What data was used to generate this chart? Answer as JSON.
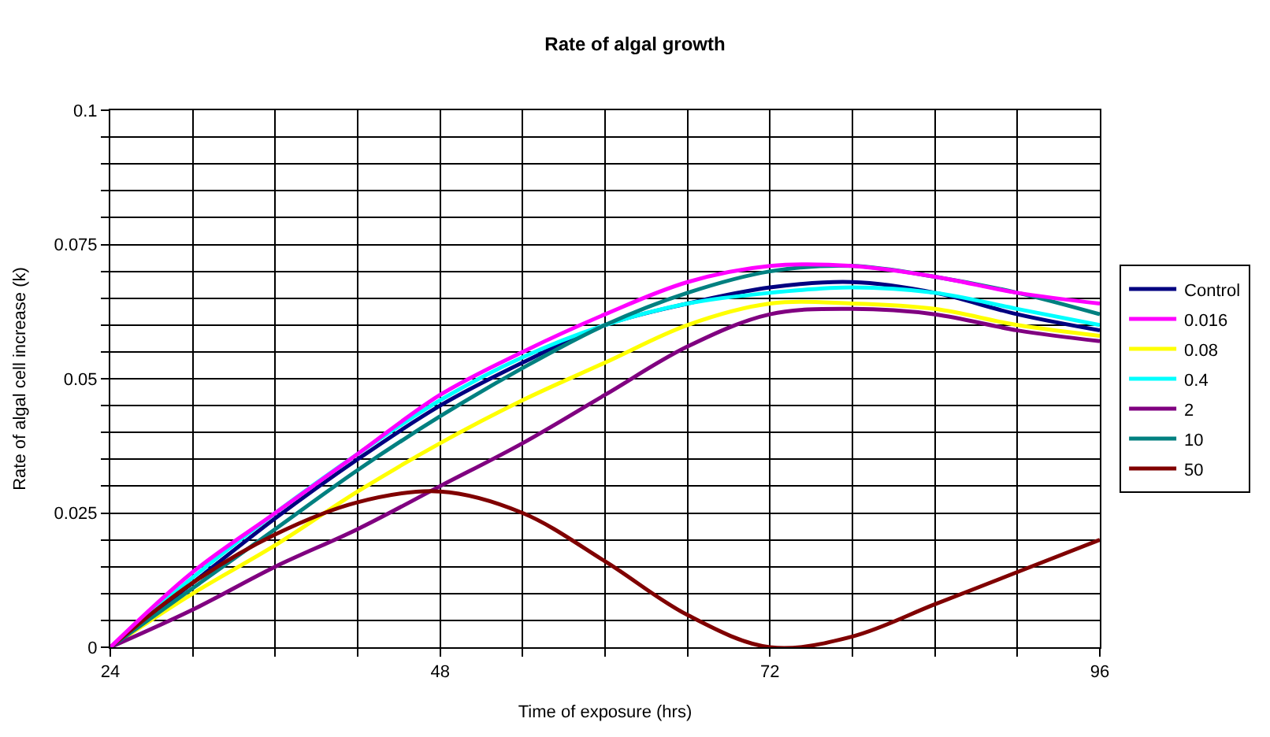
{
  "chart_data": {
    "type": "line",
    "title": "Rate of algal growth",
    "xlabel": "Time of exposure (hrs)",
    "ylabel": "Rate of algal cell increase (k)",
    "x": [
      24,
      30,
      36,
      42,
      48,
      54,
      60,
      66,
      72,
      78,
      84,
      90,
      96
    ],
    "series": [
      {
        "name": "Control",
        "color": "#000080",
        "values": [
          0,
          0.012,
          0.024,
          0.035,
          0.045,
          0.053,
          0.06,
          0.064,
          0.067,
          0.068,
          0.066,
          0.062,
          0.059
        ]
      },
      {
        "name": "0.016",
        "color": "#ff00ff",
        "values": [
          0,
          0.014,
          0.025,
          0.036,
          0.047,
          0.055,
          0.062,
          0.068,
          0.071,
          0.071,
          0.069,
          0.066,
          0.064
        ]
      },
      {
        "name": "0.08",
        "color": "#ffff00",
        "values": [
          0,
          0.01,
          0.019,
          0.029,
          0.038,
          0.046,
          0.053,
          0.06,
          0.064,
          0.064,
          0.063,
          0.06,
          0.058
        ]
      },
      {
        "name": "0.4",
        "color": "#00ffff",
        "values": [
          0,
          0.013,
          0.025,
          0.036,
          0.046,
          0.054,
          0.06,
          0.064,
          0.066,
          0.067,
          0.066,
          0.063,
          0.06
        ]
      },
      {
        "name": "2",
        "color": "#800080",
        "values": [
          0,
          0.007,
          0.015,
          0.022,
          0.03,
          0.038,
          0.047,
          0.056,
          0.062,
          0.063,
          0.062,
          0.059,
          0.057
        ]
      },
      {
        "name": "10",
        "color": "#008080",
        "values": [
          0,
          0.011,
          0.022,
          0.033,
          0.043,
          0.052,
          0.06,
          0.066,
          0.07,
          0.071,
          0.069,
          0.066,
          0.062
        ]
      },
      {
        "name": "50",
        "color": "#800000",
        "values": [
          0,
          0.012,
          0.021,
          0.027,
          0.029,
          0.025,
          0.016,
          0.006,
          0,
          0.002,
          0.008,
          0.014,
          0.02
        ]
      }
    ],
    "xlim": [
      24,
      96
    ],
    "xticks": [
      24,
      {
        "value": 30,
        "label": null
      },
      {
        "value": 36,
        "label": null
      },
      {
        "value": 42,
        "label": null
      },
      48,
      {
        "value": 54,
        "label": null
      },
      {
        "value": 60,
        "label": null
      },
      {
        "value": 66,
        "label": null
      },
      72,
      {
        "value": 78,
        "label": null
      },
      {
        "value": 84,
        "label": null
      },
      {
        "value": 90,
        "label": null
      },
      96
    ],
    "ylim": [
      0,
      0.1
    ],
    "yticks": [
      0,
      {
        "value": 0.005,
        "label": null
      },
      {
        "value": 0.01,
        "label": null
      },
      {
        "value": 0.015,
        "label": null
      },
      {
        "value": 0.02,
        "label": null
      },
      0.025,
      {
        "value": 0.03,
        "label": null
      },
      {
        "value": 0.035,
        "label": null
      },
      {
        "value": 0.04,
        "label": null
      },
      {
        "value": 0.045,
        "label": null
      },
      0.05,
      {
        "value": 0.055,
        "label": null
      },
      {
        "value": 0.06,
        "label": null
      },
      {
        "value": 0.065,
        "label": null
      },
      {
        "value": 0.07,
        "label": null
      },
      0.075,
      {
        "value": 0.08,
        "label": null
      },
      {
        "value": 0.085,
        "label": null
      },
      {
        "value": 0.09,
        "label": null
      },
      {
        "value": 0.095,
        "label": null
      },
      0.1
    ],
    "grid": true,
    "legend": "right",
    "marker": "none",
    "line_style": "solid"
  }
}
